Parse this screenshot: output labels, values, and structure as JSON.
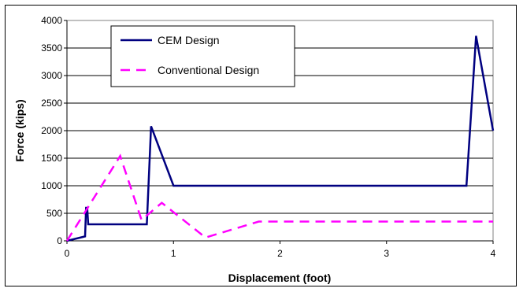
{
  "chart_data": {
    "type": "line",
    "title": "",
    "xlabel": "Displacement (foot)",
    "ylabel": "Force (kips)",
    "xlim": [
      0,
      4
    ],
    "ylim": [
      0,
      4000
    ],
    "xticks": [
      0,
      1,
      2,
      3,
      4
    ],
    "yticks": [
      0,
      500,
      1000,
      1500,
      2000,
      2500,
      3000,
      3500,
      4000
    ],
    "grid": "horizontal",
    "legend_position": "top-left",
    "series": [
      {
        "name": "CEM Design",
        "color": "#000080",
        "style": "solid",
        "points": [
          [
            0,
            0
          ],
          [
            0.17,
            80
          ],
          [
            0.18,
            600
          ],
          [
            0.19,
            600
          ],
          [
            0.2,
            300
          ],
          [
            0.75,
            300
          ],
          [
            0.79,
            2080
          ],
          [
            1.0,
            1000
          ],
          [
            3.75,
            1000
          ],
          [
            3.84,
            3720
          ],
          [
            4.0,
            2000
          ]
        ]
      },
      {
        "name": "Conventional Design",
        "color": "#FF00FF",
        "style": "dashed",
        "points": [
          [
            0,
            0
          ],
          [
            0.5,
            1540
          ],
          [
            0.7,
            380
          ],
          [
            0.89,
            690
          ],
          [
            1.3,
            60
          ],
          [
            1.8,
            350
          ],
          [
            4.0,
            350
          ]
        ]
      }
    ]
  }
}
